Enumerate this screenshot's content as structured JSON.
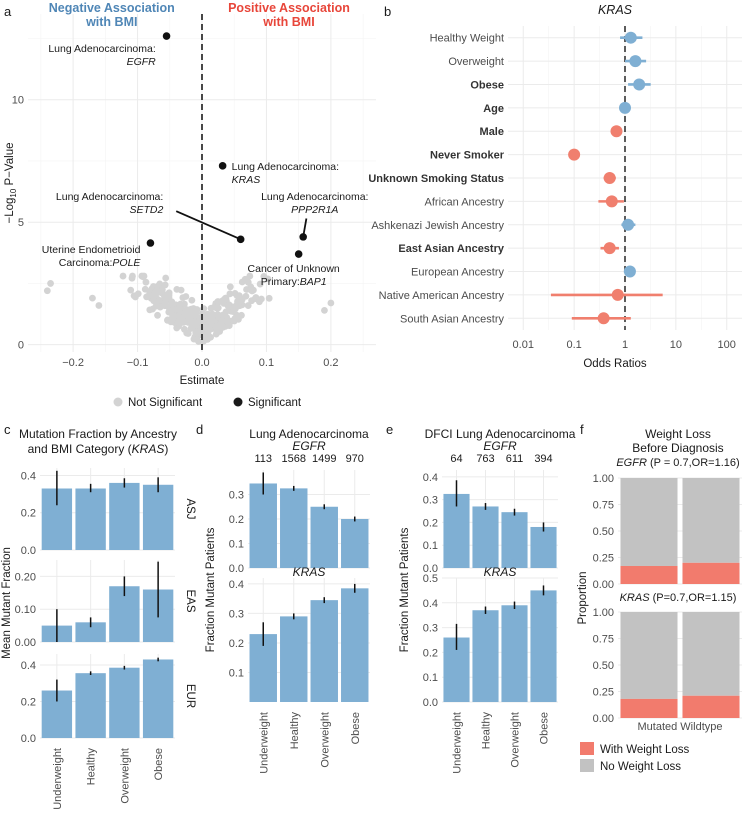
{
  "colors": {
    "blue": "#7fafd3",
    "red": "#f07f6e",
    "grey": "#d3d3d3",
    "bar": "#7fafd3",
    "err": "#111111",
    "neg": "#4f86b6",
    "pos": "#e8463a",
    "wl": "#f27b6d",
    "nwl": "#c2c2c2"
  },
  "panels": {
    "a": "a",
    "b": "b",
    "c": "c",
    "d": "d",
    "e": "e",
    "f": "f"
  },
  "chart_data": [
    {
      "id": "a",
      "type": "scatter",
      "header_neg": [
        "Negative Association",
        "with BMI"
      ],
      "header_pos": [
        "Positive Association",
        "with BMI"
      ],
      "xlabel": "Estimate",
      "ylabel_main": "−Log",
      "ylabel_sub": "10",
      "ylabel_end": " P−Value",
      "xlim": [
        -0.27,
        0.27
      ],
      "ylim": [
        -0.3,
        13.5
      ],
      "xticks": [
        {
          "v": -0.2,
          "t": "−0.2"
        },
        {
          "v": -0.1,
          "t": "−0.1"
        },
        {
          "v": 0,
          "t": "0.0"
        },
        {
          "v": 0.1,
          "t": "0.1"
        },
        {
          "v": 0.2,
          "t": "0.2"
        }
      ],
      "yticks": [
        {
          "v": 0,
          "t": "0"
        },
        {
          "v": 5,
          "t": "5"
        },
        {
          "v": 10,
          "t": "10"
        }
      ],
      "legend": [
        {
          "label": "Not Significant",
          "color": "#d3d3d3"
        },
        {
          "label": "Significant",
          "color": "#1a1a1a"
        }
      ],
      "significant": [
        {
          "x": -0.055,
          "y": 12.6,
          "l1": "Lung Adenocarcinoma:",
          "l2": "EGFR"
        },
        {
          "x": 0.032,
          "y": 7.3,
          "l1": "Lung Adenocarcinoma:",
          "l2": "KRAS"
        },
        {
          "x": 0.06,
          "y": 4.3,
          "l1": "Lung Adenocarcinoma:",
          "l2": "SETD2"
        },
        {
          "x": 0.157,
          "y": 4.4,
          "l1": "Lung Adenocarcinoma:",
          "l2": "PPP2R1A"
        },
        {
          "x": -0.08,
          "y": 4.15,
          "l1": "Uterine Endometrioid",
          "l2": "Carcinoma:",
          "l3": "POLE"
        },
        {
          "x": 0.15,
          "y": 3.7,
          "l1": "Cancer of Unknown",
          "l2": "Primary:",
          "l3": "BAP1"
        }
      ]
    },
    {
      "id": "b",
      "type": "forest",
      "title": "KRAS",
      "xlabel": "Odds Ratios",
      "xticks": [
        {
          "v": 0.01,
          "t": "0.01"
        },
        {
          "v": 0.1,
          "t": "0.1"
        },
        {
          "v": 1,
          "t": "1"
        },
        {
          "v": 10,
          "t": "10"
        },
        {
          "v": 100,
          "t": "100"
        }
      ],
      "rows": [
        {
          "label": "Healthy Weight",
          "or": 1.3,
          "lo": 0.8,
          "hi": 2.2,
          "bold": false,
          "dir": "pos"
        },
        {
          "label": "Overweight",
          "or": 1.6,
          "lo": 1.0,
          "hi": 2.6,
          "bold": false,
          "dir": "pos"
        },
        {
          "label": "Obese",
          "or": 1.9,
          "lo": 1.15,
          "hi": 3.2,
          "bold": true,
          "dir": "pos"
        },
        {
          "label": "Age",
          "or": 1.0,
          "lo": 0.97,
          "hi": 1.03,
          "bold": true,
          "dir": "pos"
        },
        {
          "label": "Male",
          "or": 0.68,
          "lo": 0.58,
          "hi": 0.8,
          "bold": true,
          "dir": "neg"
        },
        {
          "label": "Never Smoker",
          "or": 0.1,
          "lo": 0.085,
          "hi": 0.12,
          "bold": true,
          "dir": "neg"
        },
        {
          "label": "Unknown Smoking Status",
          "or": 0.5,
          "lo": 0.38,
          "hi": 0.66,
          "bold": true,
          "dir": "neg"
        },
        {
          "label": "African Ancestry",
          "or": 0.55,
          "lo": 0.3,
          "hi": 0.95,
          "bold": false,
          "dir": "neg"
        },
        {
          "label": "Ashkenazi Jewish Ancestry",
          "or": 1.15,
          "lo": 0.85,
          "hi": 1.6,
          "bold": false,
          "dir": "pos"
        },
        {
          "label": "East  Asian Ancestry",
          "or": 0.5,
          "lo": 0.33,
          "hi": 0.76,
          "bold": true,
          "dir": "neg"
        },
        {
          "label": "European Ancestry",
          "or": 1.25,
          "lo": 0.95,
          "hi": 1.6,
          "bold": false,
          "dir": "pos"
        },
        {
          "label": "Native American Ancestry",
          "or": 0.72,
          "lo": 0.035,
          "hi": 5.5,
          "bold": false,
          "dir": "neg"
        },
        {
          "label": "South Asian Ancestry",
          "or": 0.38,
          "lo": 0.09,
          "hi": 1.3,
          "bold": false,
          "dir": "neg"
        }
      ]
    },
    {
      "id": "c",
      "type": "bar",
      "title": [
        "Mutation Fraction by Ancestry",
        "and BMI Category (",
        "KRAS",
        ")"
      ],
      "ylabel": "Mean Mutant Fraction",
      "categories": [
        "Underweight",
        "Healthy",
        "Overweight",
        "Obese"
      ],
      "facets": [
        {
          "strip": "ASJ",
          "ylim": [
            0,
            0.44
          ],
          "yticks": [
            {
              "v": 0,
              "t": "0.0"
            },
            {
              "v": 0.2,
              "t": "0.2"
            },
            {
              "v": 0.4,
              "t": "0.4"
            }
          ],
          "values": [
            0.33,
            0.33,
            0.36,
            0.35
          ],
          "lo": [
            0.24,
            0.31,
            0.335,
            0.31
          ],
          "hi": [
            0.425,
            0.355,
            0.385,
            0.39
          ]
        },
        {
          "strip": "EAS",
          "ylim": [
            0,
            0.25
          ],
          "yticks": [
            {
              "v": 0,
              "t": "0.00"
            },
            {
              "v": 0.1,
              "t": "0.10"
            },
            {
              "v": 0.2,
              "t": "0.20"
            }
          ],
          "values": [
            0.05,
            0.06,
            0.17,
            0.16
          ],
          "lo": [
            0.0,
            0.045,
            0.14,
            0.075
          ],
          "hi": [
            0.1,
            0.075,
            0.2,
            0.245
          ]
        },
        {
          "strip": "EUR",
          "ylim": [
            0,
            0.46
          ],
          "yticks": [
            {
              "v": 0,
              "t": "0.0"
            },
            {
              "v": 0.2,
              "t": "0.2"
            },
            {
              "v": 0.4,
              "t": "0.4"
            }
          ],
          "values": [
            0.26,
            0.355,
            0.385,
            0.43
          ],
          "lo": [
            0.2,
            0.345,
            0.375,
            0.42
          ],
          "hi": [
            0.32,
            0.365,
            0.395,
            0.44
          ]
        }
      ]
    },
    {
      "id": "d",
      "type": "bar",
      "title": "Lung Adenocarcinoma",
      "ylabel": "Fraction Mutant Patients",
      "categories": [
        "Underweight",
        "Healthy",
        "Overweight",
        "Obese"
      ],
      "counts": [
        "113",
        "1568",
        "1499",
        "970"
      ],
      "facets": [
        {
          "title": "EGFR",
          "ylim": [
            0,
            0.4
          ],
          "yticks": [
            {
              "v": 0,
              "t": "0.0"
            },
            {
              "v": 0.1,
              "t": "0.1"
            },
            {
              "v": 0.2,
              "t": "0.2"
            },
            {
              "v": 0.3,
              "t": "0.3"
            }
          ],
          "values": [
            0.345,
            0.325,
            0.25,
            0.2
          ],
          "lo": [
            0.3,
            0.315,
            0.24,
            0.19
          ],
          "hi": [
            0.39,
            0.335,
            0.26,
            0.21
          ]
        },
        {
          "title": "KRAS",
          "ylim": [
            0,
            0.42
          ],
          "yticks": [
            {
              "v": 0.1,
              "t": "0.1"
            },
            {
              "v": 0.2,
              "t": "0.2"
            },
            {
              "v": 0.3,
              "t": "0.3"
            },
            {
              "v": 0.4,
              "t": "0.4"
            }
          ],
          "values": [
            0.23,
            0.29,
            0.345,
            0.385
          ],
          "lo": [
            0.19,
            0.28,
            0.335,
            0.37
          ],
          "hi": [
            0.27,
            0.3,
            0.355,
            0.4
          ]
        }
      ]
    },
    {
      "id": "e",
      "type": "bar",
      "title": "DFCI Lung Adenocarcinoma",
      "ylabel": "Fraction Mutant Patients",
      "categories": [
        "Underweight",
        "Healthy",
        "Overweight",
        "Obese"
      ],
      "counts": [
        "64",
        "763",
        "611",
        "394"
      ],
      "facets": [
        {
          "title": "EGFR",
          "ylim": [
            0,
            0.43
          ],
          "yticks": [
            {
              "v": 0,
              "t": "0.0"
            },
            {
              "v": 0.1,
              "t": "0.1"
            },
            {
              "v": 0.2,
              "t": "0.2"
            },
            {
              "v": 0.3,
              "t": "0.3"
            },
            {
              "v": 0.4,
              "t": "0.4"
            }
          ],
          "values": [
            0.325,
            0.27,
            0.245,
            0.18
          ],
          "lo": [
            0.27,
            0.255,
            0.23,
            0.16
          ],
          "hi": [
            0.385,
            0.285,
            0.26,
            0.2
          ]
        },
        {
          "title": "KRAS",
          "ylim": [
            0,
            0.5
          ],
          "yticks": [
            {
              "v": 0,
              "t": "0.0"
            },
            {
              "v": 0.1,
              "t": "0.1"
            },
            {
              "v": 0.2,
              "t": "0.2"
            },
            {
              "v": 0.3,
              "t": "0.3"
            },
            {
              "v": 0.4,
              "t": "0.4"
            },
            {
              "v": 0.5,
              "t": "0.5"
            }
          ],
          "values": [
            0.26,
            0.37,
            0.39,
            0.45
          ],
          "lo": [
            0.21,
            0.355,
            0.375,
            0.43
          ],
          "hi": [
            0.315,
            0.385,
            0.405,
            0.47
          ]
        }
      ]
    },
    {
      "id": "f",
      "type": "stacked-bar",
      "title": [
        "Weight Loss",
        "Before Diagnosis"
      ],
      "ylabel": "Proportion",
      "xlabel": "Mutated Wildtype",
      "categories": [
        "Mutated",
        "Wildtype"
      ],
      "legend": [
        {
          "label": "With Weight Loss",
          "color": "#f27b6d"
        },
        {
          "label": "No Weight Loss",
          "color": "#c2c2c2"
        }
      ],
      "yticks": [
        {
          "v": 0,
          "t": "0.00"
        },
        {
          "v": 0.25,
          "t": "0.25"
        },
        {
          "v": 0.5,
          "t": "0.50"
        },
        {
          "v": 0.75,
          "t": "0.75"
        },
        {
          "v": 1,
          "t": "1.00"
        }
      ],
      "facets": [
        {
          "gene": "EGFR",
          "stat": "(P = 0.7,OR=1.16)",
          "with_weight_loss": [
            0.17,
            0.2
          ]
        },
        {
          "gene": "KRAS",
          "stat": "(P=0.7,OR=1.15)",
          "with_weight_loss": [
            0.18,
            0.21
          ]
        }
      ]
    }
  ]
}
